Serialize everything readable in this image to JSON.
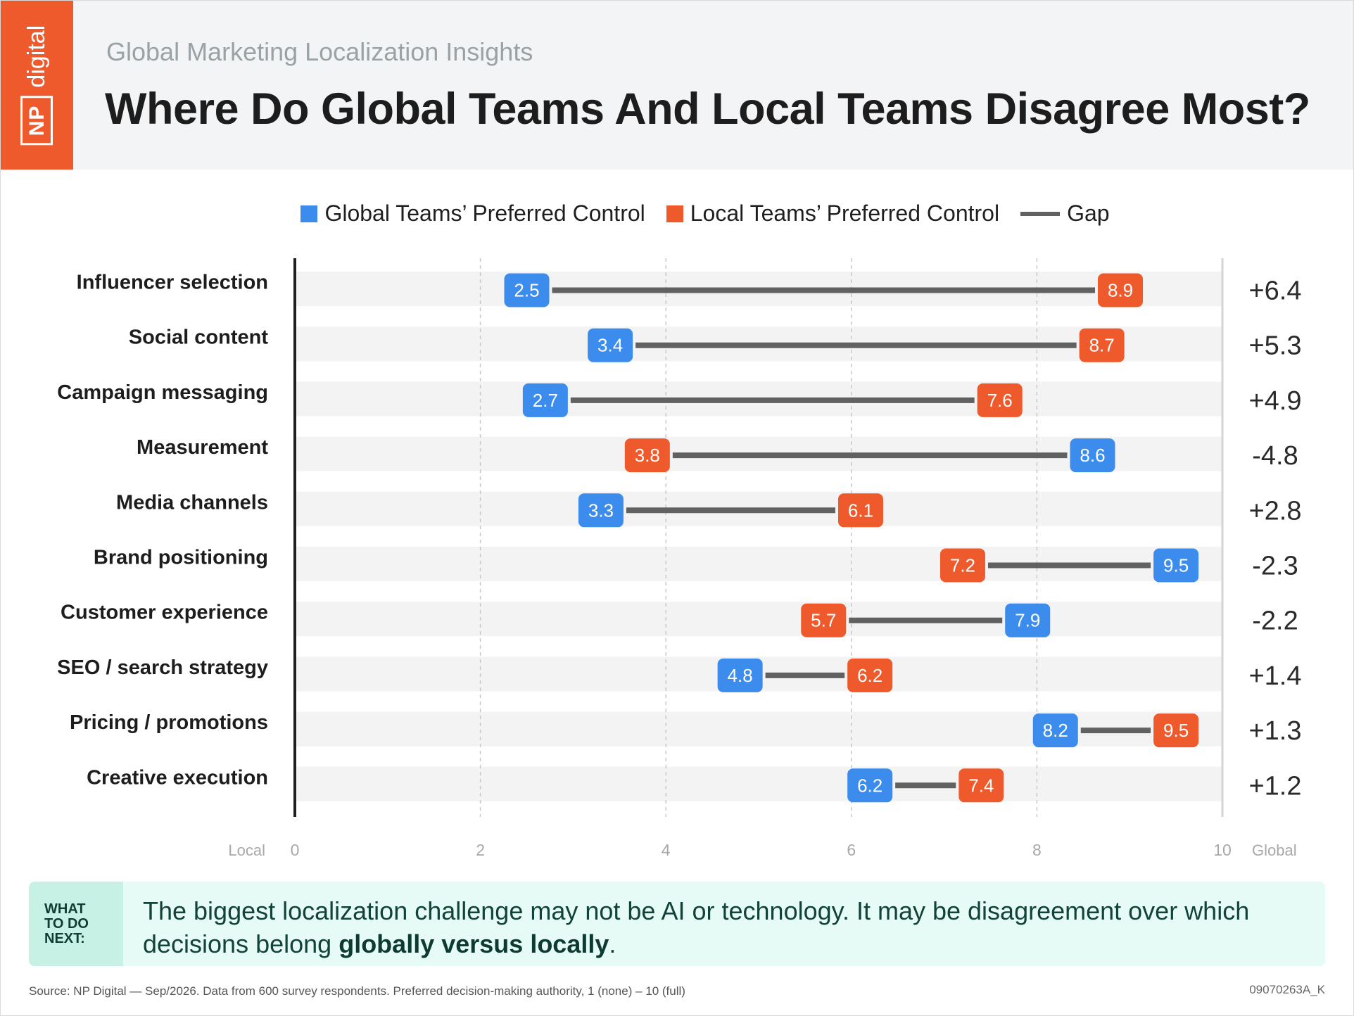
{
  "header": {
    "brand_np": "NP",
    "brand_digital": "digital",
    "subtitle": "Global Marketing Localization Insights",
    "title": "Where Do Global Teams And Local Teams Disagree Most?"
  },
  "colors": {
    "brand": "#ef5a2c",
    "global": "#3b8ced",
    "local": "#ef5a2c",
    "gap": "#616161"
  },
  "chart_data": {
    "type": "dumbbell",
    "series": [
      {
        "name": "Global Teams’ Preferred Control",
        "color": "#3b8ced"
      },
      {
        "name": "Local Teams’ Preferred Control",
        "color": "#ef5a2c"
      },
      {
        "name": "Gap",
        "color": "#616161"
      }
    ],
    "categories": [
      "Influencer selection",
      "Social content",
      "Campaign messaging",
      "Measurement",
      "Media channels",
      "Brand positioning",
      "Customer experience",
      "SEO / search strategy",
      "Pricing / promotions",
      "Creative execution"
    ],
    "global_values": [
      2.5,
      3.4,
      2.7,
      8.6,
      3.3,
      9.5,
      7.9,
      4.8,
      8.2,
      6.2
    ],
    "local_values": [
      8.9,
      8.7,
      7.6,
      3.8,
      6.1,
      7.2,
      5.7,
      6.2,
      9.5,
      7.4
    ],
    "gap_labels": [
      "+6.4",
      "+5.3",
      "+4.9",
      "-4.8",
      "+2.8",
      "-2.3",
      "-2.2",
      "+1.4",
      "+1.3",
      "+1.2"
    ],
    "xlim": [
      0,
      10
    ],
    "x_ticks": [
      0,
      2,
      4,
      6,
      8,
      10
    ],
    "x_left_label": "Local",
    "x_right_label": "Global",
    "grid": "vertical dashed"
  },
  "note": {
    "tag": "WHAT TO DO NEXT:",
    "text_before": "The biggest localization challenge may not be AI or technology. It may be disagreement over which decisions belong ",
    "text_bold": "globally versus locally",
    "text_after": "."
  },
  "footer": {
    "source": "Source: NP Digital — Sep/2026. Data from 600 survey respondents. Preferred decision-making authority, 1 (none) – 10 (full)",
    "code": "09070263A_K"
  }
}
